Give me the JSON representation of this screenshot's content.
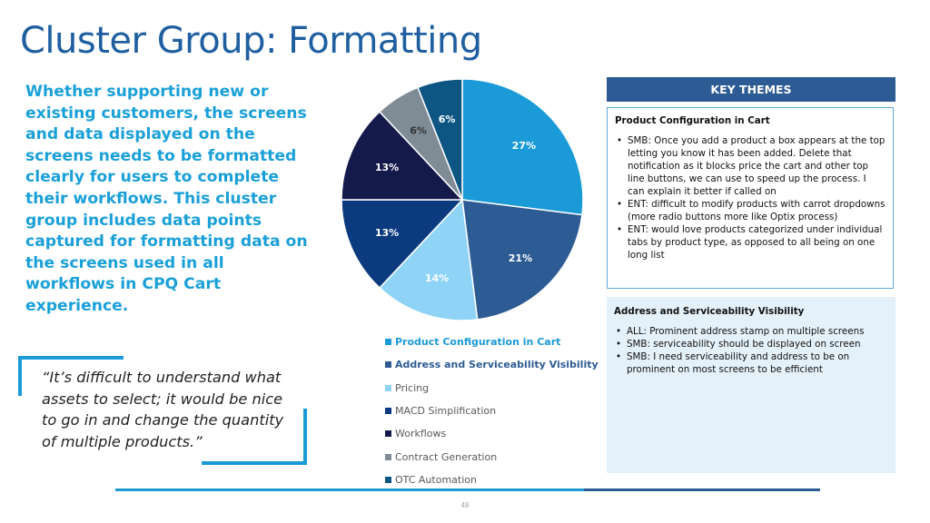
{
  "title": "Cluster Group: Formatting",
  "intro": "Whether supporting new or existing customers, the screens and data displayed on the screens needs to be formatted clearly for users to complete their workflows. This cluster group includes data points captured for formatting data on the screens used in all workflows in CPQ Cart experience.",
  "quote": "“It’s difficult to understand what assets to select; it would be nice to go in and change the quantity of multiple products.”",
  "chart_data": {
    "type": "pie",
    "title": "",
    "categories": [
      "Product Configuration in Cart",
      "Address and Serviceability Visibility",
      "Pricing",
      "MACD Simplification",
      "Workflows",
      "Contract Generation",
      "OTC Automation"
    ],
    "values": [
      27,
      21,
      14,
      13,
      13,
      6,
      6
    ],
    "labels": [
      "27%",
      "21%",
      "14%",
      "13%",
      "13%",
      "6%",
      "6%"
    ],
    "colors": [
      "#1a9ad6",
      "#2d5b93",
      "#8fd3f7",
      "#0b3a7e",
      "#141a4a",
      "#7f8c96",
      "#0d5684"
    ],
    "label_colors": [
      "#ffffff",
      "#ffffff",
      "#ffffff",
      "#ffffff",
      "#ffffff",
      "#333333",
      "#ffffff"
    ],
    "legend_bold": [
      true,
      true,
      false,
      false,
      false,
      false,
      false
    ],
    "legend_colors": [
      "#1a9ad6",
      "#2d5b93",
      "#595959",
      "#595959",
      "#595959",
      "#595959",
      "#595959"
    ],
    "legend_position": "bottom"
  },
  "key_themes": {
    "header": "KEY THEMES",
    "sections": [
      {
        "title": "Product Configuration in Cart",
        "bullets": [
          "SMB: Once you add a product a box appears at the top letting you know it has been added. Delete that notification as it blocks price the cart and other top line buttons, we can use to speed up the process. I can explain it better if called on",
          "ENT: difficult to modify products with carrot dropdowns (more radio buttons more like Optix process)",
          "ENT: would love products categorized under individual tabs by product type, as opposed to all being on one long list"
        ]
      },
      {
        "title": "Address and Serviceability Visibility",
        "bullets": [
          "ALL: Prominent address stamp on multiple screens",
          "SMB: serviceability should be displayed on screen",
          "SMB: I need serviceability and address to be on prominent on most screens to be efficient"
        ]
      }
    ]
  },
  "page_number": "48"
}
